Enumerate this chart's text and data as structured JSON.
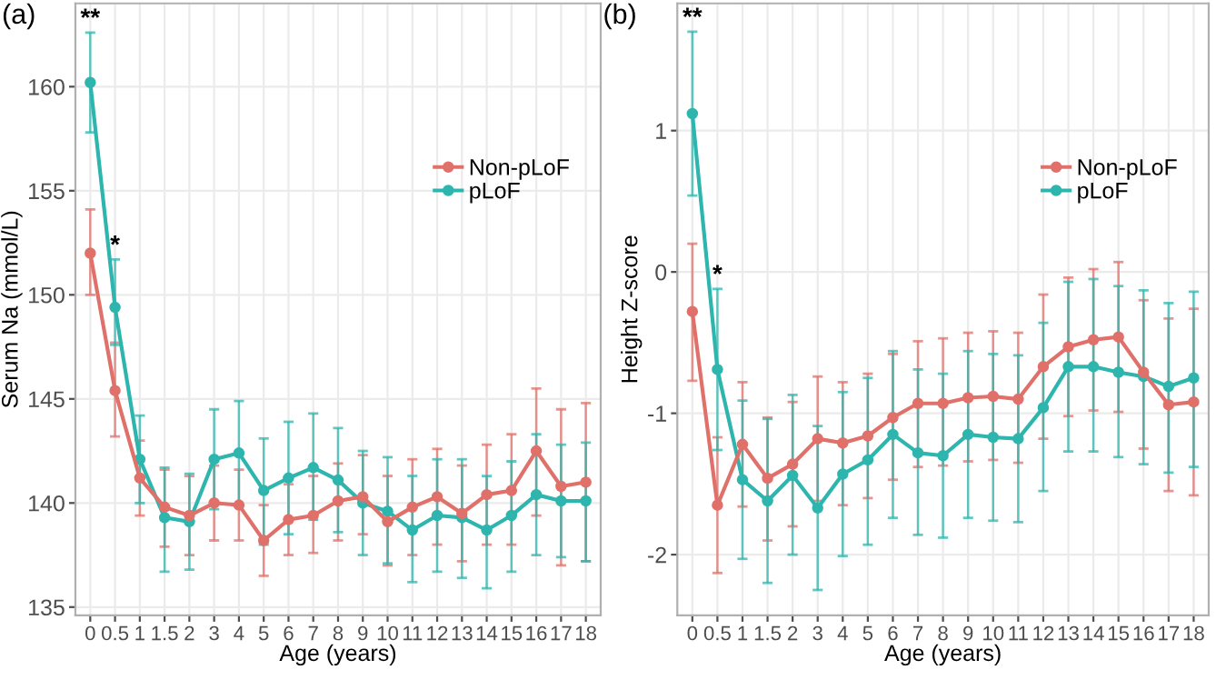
{
  "chart_data": [
    {
      "type": "line",
      "title": "(a)",
      "xlabel": "Age (years)",
      "ylabel": "Serum Na (mmol/L)",
      "categories": [
        "0",
        "0.5",
        "1",
        "1.5",
        "2",
        "3",
        "4",
        "5",
        "6",
        "7",
        "8",
        "9",
        "10",
        "11",
        "12",
        "13",
        "14",
        "15",
        "16",
        "17",
        "18"
      ],
      "ylim": [
        134.6,
        164
      ],
      "yticks": [
        135,
        140,
        145,
        150,
        155,
        160
      ],
      "grid": true,
      "legend": "top right",
      "marker": "circle",
      "series": [
        {
          "name": "Non-pLoF",
          "color": "#e0706a",
          "values": [
            152.0,
            145.4,
            141.2,
            139.8,
            139.4,
            140.0,
            139.9,
            138.2,
            139.2,
            139.4,
            140.1,
            140.3,
            139.1,
            139.8,
            140.3,
            139.5,
            140.4,
            140.6,
            142.5,
            140.8,
            141.0
          ],
          "errors": [
            [
              150.0,
              154.1
            ],
            [
              143.2,
              147.7
            ],
            [
              139.4,
              143.0
            ],
            [
              137.9,
              141.6
            ],
            [
              137.5,
              141.3
            ],
            [
              138.2,
              141.8
            ],
            [
              138.2,
              141.6
            ],
            [
              136.5,
              139.9
            ],
            [
              137.5,
              140.9
            ],
            [
              137.6,
              141.3
            ],
            [
              138.2,
              141.9
            ],
            [
              138.5,
              142.3
            ],
            [
              137.0,
              141.3
            ],
            [
              137.5,
              142.1
            ],
            [
              138.0,
              142.6
            ],
            [
              137.2,
              141.8
            ],
            [
              138.0,
              142.8
            ],
            [
              138.0,
              143.3
            ],
            [
              139.4,
              145.5
            ],
            [
              137.0,
              144.5
            ],
            [
              137.2,
              144.8
            ]
          ]
        },
        {
          "name": "pLoF",
          "color": "#2db5ae",
          "values": [
            160.2,
            149.4,
            142.1,
            139.3,
            139.1,
            142.1,
            142.4,
            140.6,
            141.2,
            141.7,
            141.1,
            140.0,
            139.6,
            138.7,
            139.4,
            139.3,
            138.7,
            139.4,
            140.4,
            140.1,
            140.1
          ],
          "errors": [
            [
              157.8,
              162.6
            ],
            [
              147.6,
              151.7
            ],
            [
              140.0,
              144.2
            ],
            [
              136.7,
              141.7
            ],
            [
              136.8,
              141.4
            ],
            [
              139.7,
              144.5
            ],
            [
              139.9,
              144.9
            ],
            [
              138.0,
              143.1
            ],
            [
              138.5,
              143.9
            ],
            [
              139.2,
              144.3
            ],
            [
              138.6,
              143.6
            ],
            [
              137.5,
              142.5
            ],
            [
              137.1,
              142.2
            ],
            [
              136.2,
              141.3
            ],
            [
              136.7,
              142.1
            ],
            [
              136.4,
              142.1
            ],
            [
              135.9,
              141.3
            ],
            [
              136.7,
              142.0
            ],
            [
              137.5,
              143.3
            ],
            [
              137.4,
              142.8
            ],
            [
              137.2,
              142.9
            ]
          ]
        }
      ],
      "annotations": [
        {
          "text": "**",
          "x": "0",
          "y": 162.6
        },
        {
          "text": "*",
          "x": "0.5",
          "y": 151.7
        }
      ]
    },
    {
      "type": "line",
      "title": "(b)",
      "xlabel": "Age (years)",
      "ylabel": "Height Z-score",
      "categories": [
        "0",
        "0.5",
        "1",
        "1.5",
        "2",
        "3",
        "4",
        "5",
        "6",
        "7",
        "8",
        "9",
        "10",
        "11",
        "12",
        "13",
        "14",
        "15",
        "16",
        "17",
        "18"
      ],
      "ylim": [
        -2.43,
        1.9
      ],
      "yticks": [
        {
          "value": -2,
          "label": "-2"
        },
        {
          "value": -1,
          "label": "-1"
        },
        0,
        1
      ],
      "grid": true,
      "legend": "top right",
      "marker": "circle",
      "series": [
        {
          "name": "Non-pLoF",
          "color": "#e0706a",
          "values": [
            -0.28,
            -1.65,
            -1.22,
            -1.46,
            -1.36,
            -1.18,
            -1.21,
            -1.16,
            -1.03,
            -0.93,
            -0.93,
            -0.89,
            -0.88,
            -0.9,
            -0.67,
            -0.53,
            -0.48,
            -0.46,
            -0.71,
            -0.94,
            -0.92
          ],
          "errors": [
            [
              -0.77,
              0.2
            ],
            [
              -2.13,
              -1.17
            ],
            [
              -1.66,
              -0.78
            ],
            [
              -1.9,
              -1.03
            ],
            [
              -1.8,
              -0.92
            ],
            [
              -1.62,
              -0.74
            ],
            [
              -1.65,
              -0.78
            ],
            [
              -1.6,
              -0.72
            ],
            [
              -1.47,
              -0.58
            ],
            [
              -1.38,
              -0.49
            ],
            [
              -1.37,
              -0.47
            ],
            [
              -1.34,
              -0.43
            ],
            [
              -1.33,
              -0.42
            ],
            [
              -1.35,
              -0.43
            ],
            [
              -1.18,
              -0.16
            ],
            [
              -1.02,
              -0.04
            ],
            [
              -0.98,
              0.02
            ],
            [
              -0.99,
              0.07
            ],
            [
              -1.25,
              -0.2
            ],
            [
              -1.55,
              -0.33
            ],
            [
              -1.58,
              -0.26
            ]
          ]
        },
        {
          "name": "pLoF",
          "color": "#2db5ae",
          "values": [
            1.12,
            -0.69,
            -1.47,
            -1.62,
            -1.44,
            -1.67,
            -1.43,
            -1.33,
            -1.15,
            -1.28,
            -1.3,
            -1.15,
            -1.17,
            -1.18,
            -0.96,
            -0.67,
            -0.67,
            -0.71,
            -0.74,
            -0.81,
            -0.75
          ],
          "errors": [
            [
              0.54,
              1.7
            ],
            [
              -1.26,
              -0.12
            ],
            [
              -2.03,
              -0.91
            ],
            [
              -2.2,
              -1.04
            ],
            [
              -2.0,
              -0.87
            ],
            [
              -2.25,
              -1.09
            ],
            [
              -2.01,
              -0.85
            ],
            [
              -1.93,
              -0.75
            ],
            [
              -1.74,
              -0.56
            ],
            [
              -1.86,
              -0.69
            ],
            [
              -1.88,
              -0.72
            ],
            [
              -1.74,
              -0.56
            ],
            [
              -1.76,
              -0.58
            ],
            [
              -1.77,
              -0.59
            ],
            [
              -1.55,
              -0.36
            ],
            [
              -1.27,
              -0.07
            ],
            [
              -1.27,
              -0.05
            ],
            [
              -1.31,
              -0.1
            ],
            [
              -1.36,
              -0.13
            ],
            [
              -1.42,
              -0.22
            ],
            [
              -1.38,
              -0.14
            ]
          ]
        }
      ],
      "annotations": [
        {
          "text": "**",
          "x": "0",
          "y": 1.7
        },
        {
          "text": "*",
          "x": "0.5",
          "y": -0.12
        }
      ]
    }
  ]
}
